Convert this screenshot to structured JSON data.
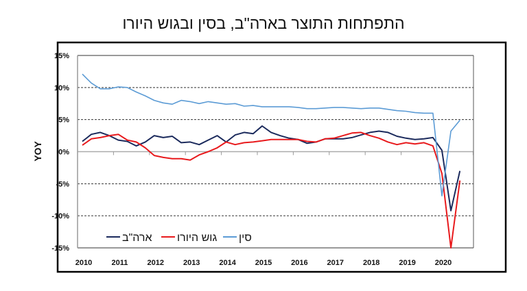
{
  "chart_data": {
    "type": "line",
    "title": "התפתחות התוצר בארה\"ב, בסין ובגוש היורו",
    "ylabel": "YOY",
    "xlabel": "",
    "ylim": [
      -15,
      15
    ],
    "y_ticks": [
      "15%",
      "10%",
      "5%",
      "0%",
      "-5%",
      "-10%",
      "-15%"
    ],
    "y_tick_values": [
      15,
      10,
      5,
      0,
      -5,
      -10,
      -15
    ],
    "x_tick_labels": [
      "2010",
      "2011",
      "2012",
      "2013",
      "2014",
      "2015",
      "2016",
      "2017",
      "2018",
      "2019",
      "2020"
    ],
    "x_frequency": "quarterly, 2010Q1 – 2020Q3",
    "grid": "horizontal dashed",
    "legend_position": "bottom-left",
    "series": [
      {
        "name": "ארה\"ב",
        "color": "#1b2a5c",
        "values": [
          1.6,
          2.7,
          3.0,
          2.5,
          1.8,
          1.6,
          0.9,
          1.5,
          2.5,
          2.2,
          2.4,
          1.4,
          1.5,
          1.1,
          1.8,
          2.5,
          1.5,
          2.6,
          3.0,
          2.8,
          4.0,
          3.0,
          2.5,
          2.1,
          1.9,
          1.3,
          1.5,
          2.0,
          2.0,
          2.0,
          2.2,
          2.6,
          3.0,
          3.2,
          3.0,
          2.4,
          2.1,
          1.9,
          2.0,
          2.2,
          0.2,
          -9.2,
          -3.0
        ]
      },
      {
        "name": "גוש היורו",
        "color": "#e8191c",
        "values": [
          1.0,
          2.0,
          2.2,
          2.5,
          2.7,
          1.8,
          1.5,
          0.6,
          -0.6,
          -0.9,
          -1.1,
          -1.1,
          -1.3,
          -0.5,
          0.0,
          0.6,
          1.5,
          1.1,
          1.4,
          1.5,
          1.7,
          1.9,
          1.9,
          1.9,
          1.9,
          1.6,
          1.5,
          2.0,
          2.1,
          2.5,
          2.9,
          3.0,
          2.5,
          2.1,
          1.5,
          1.1,
          1.4,
          1.2,
          1.4,
          0.9,
          -3.4,
          -15.0,
          -4.5
        ]
      },
      {
        "name": "סין",
        "color": "#5b9bd5",
        "values": [
          12.1,
          10.7,
          9.8,
          9.8,
          10.1,
          10.0,
          9.3,
          8.7,
          8.0,
          7.6,
          7.4,
          8.0,
          7.8,
          7.5,
          7.8,
          7.6,
          7.4,
          7.5,
          7.1,
          7.2,
          7.0,
          7.0,
          7.0,
          7.0,
          6.9,
          6.7,
          6.7,
          6.8,
          6.9,
          6.9,
          6.8,
          6.7,
          6.8,
          6.8,
          6.6,
          6.4,
          6.3,
          6.1,
          6.0,
          6.0,
          -6.9,
          3.2,
          4.9
        ]
      }
    ]
  }
}
